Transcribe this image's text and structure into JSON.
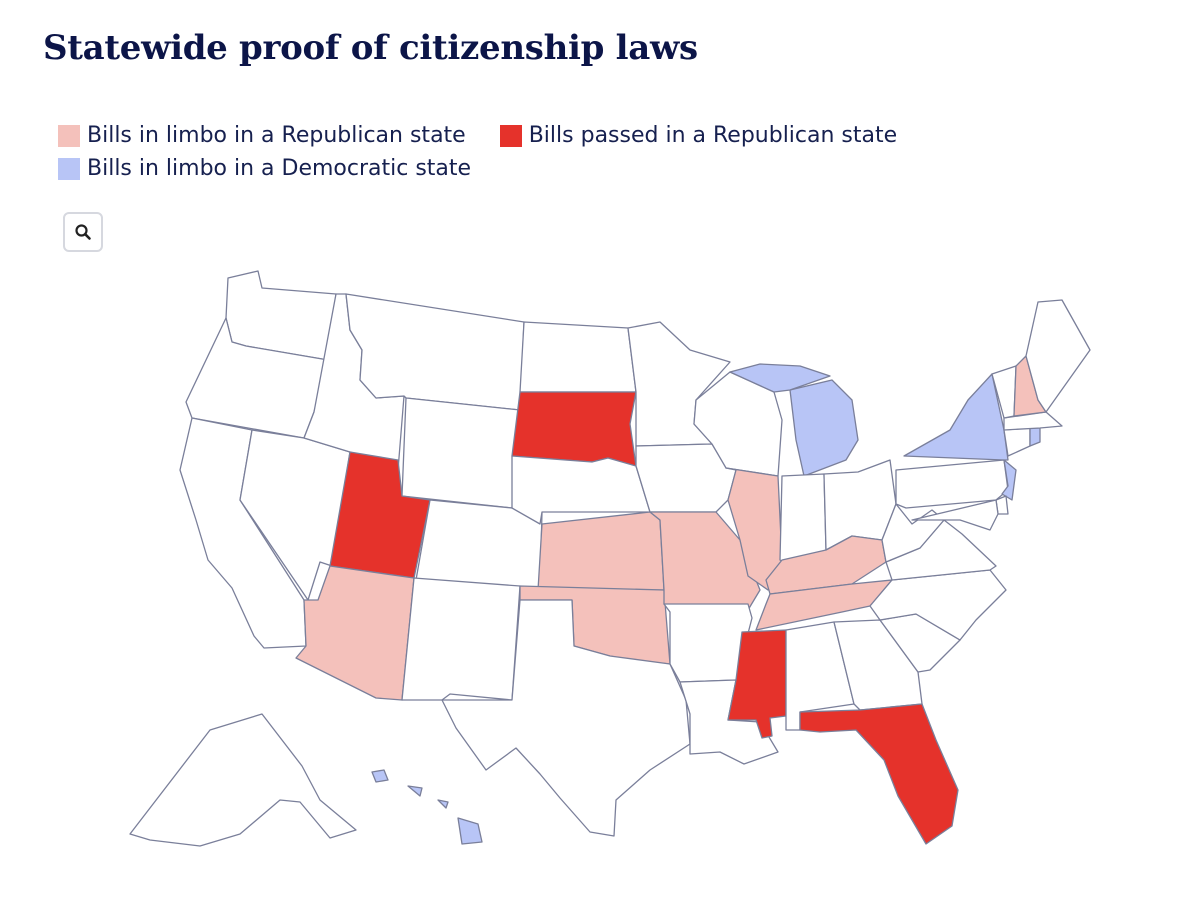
{
  "title": "Statewide proof of citizenship laws",
  "legend": [
    {
      "label": "Bills in limbo in a Republican state",
      "color": "#f4c1bb"
    },
    {
      "label": "Bills passed in a Republican state",
      "color": "#e5322b"
    },
    {
      "label": "Bills in limbo in a Democratic state",
      "color": "#b8c5f6"
    }
  ],
  "zoom": {
    "icon": "search-icon"
  },
  "map": {
    "default_color": "#ffffff",
    "border_color": "#7a7f9a",
    "states": {
      "South Dakota": "passed-republican",
      "Utah": "passed-republican",
      "Mississippi": "passed-republican",
      "Florida": "passed-republican",
      "Arizona": "limbo-republican",
      "Kansas": "limbo-republican",
      "Oklahoma": "limbo-republican",
      "Missouri": "limbo-republican",
      "Illinois": "limbo-republican",
      "Kentucky": "limbo-republican",
      "Tennessee": "limbo-republican",
      "New Hampshire": "limbo-republican",
      "Michigan": "limbo-democratic",
      "New York": "limbo-democratic",
      "New Jersey": "limbo-democratic",
      "Rhode Island": "limbo-democratic",
      "Hawaii": "limbo-democratic"
    }
  }
}
